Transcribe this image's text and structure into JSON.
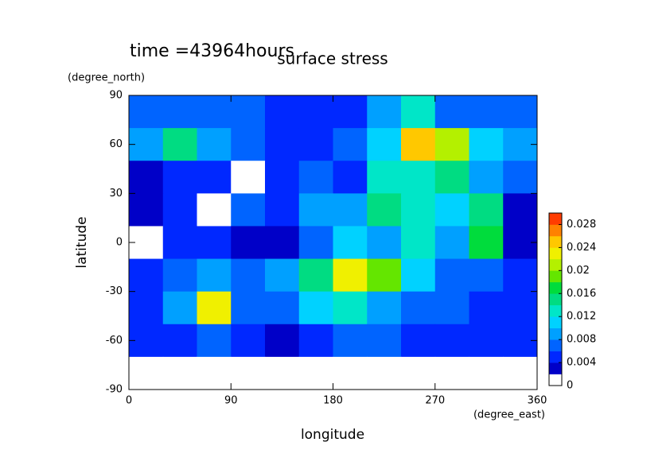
{
  "chart_data": {
    "type": "contour",
    "title": "surface stress",
    "subtitle": "time =43964hours",
    "xlabel": "longitude",
    "ylabel": "latitude",
    "xunit": "(degree_east)",
    "yunit": "(degree_north)",
    "x": [
      15,
      45,
      75,
      105,
      135,
      165,
      195,
      225,
      255,
      285,
      315,
      345
    ],
    "y": [
      80,
      60,
      40,
      20,
      0,
      -20,
      -40,
      -60,
      -80
    ],
    "z": [
      [
        0.006,
        0.006,
        0.006,
        0.006,
        0.004,
        0.004,
        0.004,
        0.008,
        0.012,
        0.006,
        0.006,
        0.006
      ],
      [
        0.008,
        0.014,
        0.008,
        0.006,
        0.004,
        0.004,
        0.006,
        0.01,
        0.024,
        0.02,
        0.01,
        0.008
      ],
      [
        0.002,
        0.004,
        0.004,
        0,
        0.004,
        0.006,
        0.004,
        0.012,
        0.012,
        0.014,
        0.008,
        0.006
      ],
      [
        0.002,
        0.004,
        0,
        0.006,
        0.004,
        0.008,
        0.008,
        0.014,
        0.012,
        0.01,
        0.014,
        0.002
      ],
      [
        0,
        0.004,
        0.004,
        0.002,
        0.002,
        0.006,
        0.01,
        0.008,
        0.012,
        0.008,
        0.016,
        0.002
      ],
      [
        0.004,
        0.006,
        0.008,
        0.006,
        0.008,
        0.014,
        0.022,
        0.018,
        0.01,
        0.006,
        0.006,
        0.004
      ],
      [
        0.004,
        0.008,
        0.022,
        0.006,
        0.006,
        0.01,
        0.012,
        0.008,
        0.006,
        0.006,
        0.004,
        0.004
      ],
      [
        0.004,
        0.004,
        0.006,
        0.004,
        0.002,
        0.004,
        0.006,
        0.006,
        0.004,
        0.004,
        0.004,
        0.004
      ],
      [
        0,
        0,
        0,
        0,
        0,
        0,
        0,
        0,
        0,
        0,
        0,
        0
      ]
    ],
    "xlim": [
      0,
      360
    ],
    "ylim": [
      -90,
      90
    ],
    "xticks": [
      0,
      90,
      180,
      270,
      360
    ],
    "yticks": [
      -90,
      -60,
      -30,
      0,
      30,
      60,
      90
    ],
    "colorbar": {
      "lim": [
        0,
        0.03
      ],
      "step": 0.002,
      "ticks": [
        0,
        0.004,
        0.008,
        0.012,
        0.016,
        0.02,
        0.024,
        0.028
      ],
      "colors": [
        "#ffffff",
        "#0000c8",
        "#0028ff",
        "#0064ff",
        "#00a0ff",
        "#00d2ff",
        "#00e6c8",
        "#00dc82",
        "#00dc3c",
        "#64e600",
        "#b4f000",
        "#f0f000",
        "#ffc800",
        "#ff8200",
        "#ff3c00"
      ]
    }
  }
}
